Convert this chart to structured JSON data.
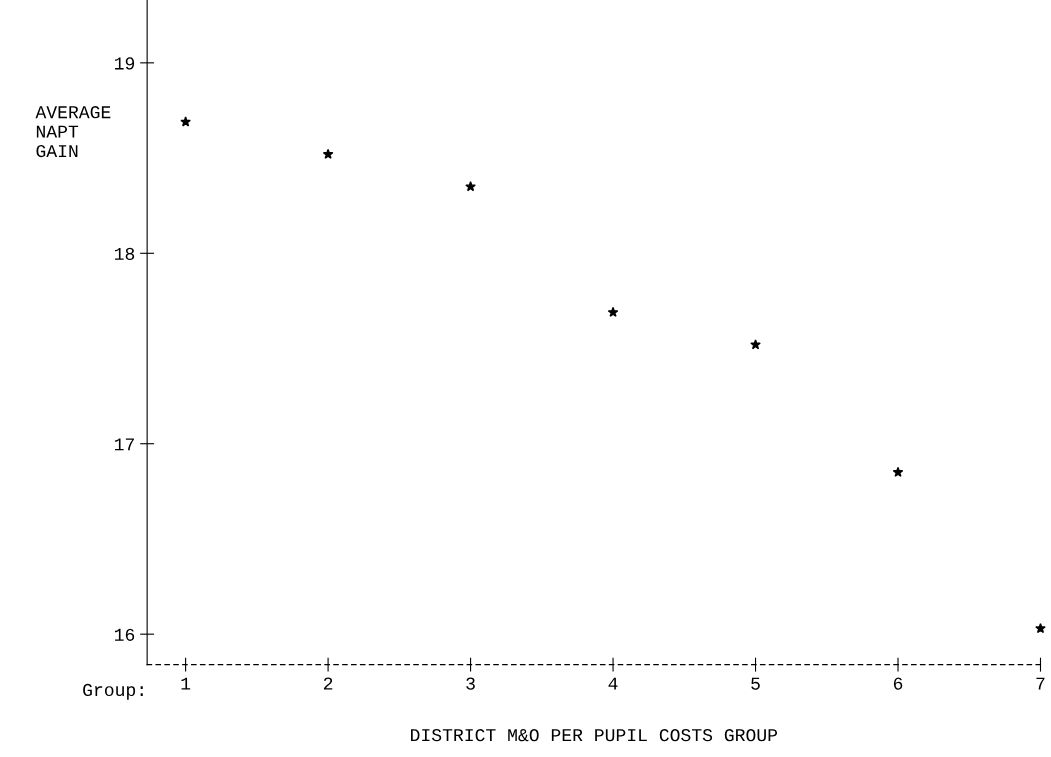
{
  "chart_data": {
    "type": "scatter",
    "xlabel": "DISTRICT M&O PER PUPIL COSTS GROUP",
    "ylabel": "AVERAGE\nNAPT\nGAIN",
    "x": [
      1,
      2,
      3,
      4,
      5,
      6,
      7
    ],
    "series": [
      {
        "color": "#000000",
        "values": [
          18.69,
          18.52,
          18.35,
          17.69,
          17.52,
          16.85,
          16.03
        ]
      }
    ],
    "xlim": [
      0.73,
      7.0
    ],
    "ylim": [
      15.84,
      19.33
    ],
    "xticks": [
      1,
      2,
      3,
      4,
      5,
      6,
      7
    ],
    "yticks": [
      16,
      17,
      18,
      19
    ],
    "annotations": [
      "Group:"
    ],
    "marker": "star",
    "grid": false
  }
}
